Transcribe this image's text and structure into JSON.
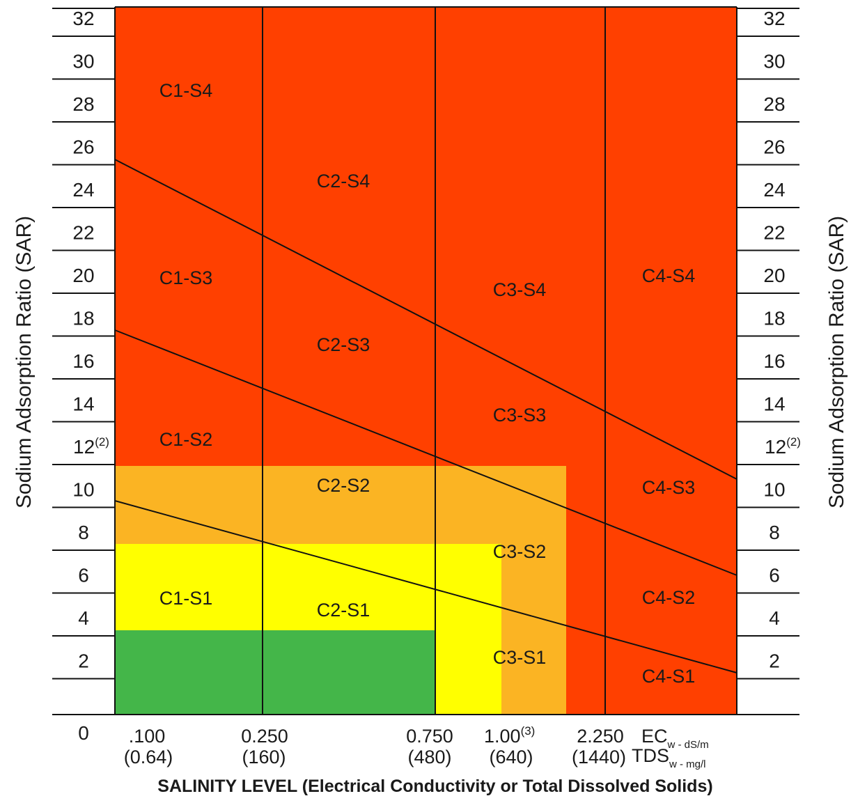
{
  "y_axis": {
    "label_left": "Sodium Adsorption Ratio (SAR)",
    "label_right": "Sodium Adsorption Ratio (SAR)",
    "ticks": [
      {
        "value": 0,
        "text": "0",
        "sup": ""
      },
      {
        "value": 2,
        "text": "2",
        "sup": ""
      },
      {
        "value": 4,
        "text": "4",
        "sup": ""
      },
      {
        "value": 6,
        "text": "6",
        "sup": ""
      },
      {
        "value": 8,
        "text": "8",
        "sup": ""
      },
      {
        "value": 10,
        "text": "10",
        "sup": ""
      },
      {
        "value": 12,
        "text": "12",
        "sup": "(2)"
      },
      {
        "value": 14,
        "text": "14",
        "sup": ""
      },
      {
        "value": 16,
        "text": "16",
        "sup": ""
      },
      {
        "value": 18,
        "text": "18",
        "sup": ""
      },
      {
        "value": 20,
        "text": "20",
        "sup": ""
      },
      {
        "value": 22,
        "text": "22",
        "sup": ""
      },
      {
        "value": 24,
        "text": "24",
        "sup": ""
      },
      {
        "value": 26,
        "text": "26",
        "sup": ""
      },
      {
        "value": 28,
        "text": "28",
        "sup": ""
      },
      {
        "value": 30,
        "text": "30",
        "sup": ""
      },
      {
        "value": 32,
        "text": "32",
        "sup": ""
      }
    ]
  },
  "x_axis": {
    "title": "SALINITY LEVEL (Electrical Conductivity or Total Dissolved Solids)",
    "ec_label": "EC",
    "ec_sub": "w - dS/m",
    "tds_label": "TDS",
    "tds_sub": "w - mg/l",
    "ticks": [
      {
        "ec": ".100",
        "ec_sup": "",
        "tds": "(0.64)"
      },
      {
        "ec": "0.250",
        "ec_sup": "",
        "tds": "(160)"
      },
      {
        "ec": "0.750",
        "ec_sup": "",
        "tds": "(480)"
      },
      {
        "ec": "1.00",
        "ec_sup": "(3)",
        "tds": "(640)"
      },
      {
        "ec": "2.250",
        "ec_sup": "",
        "tds": "(1440)"
      }
    ]
  },
  "zones": {
    "C1-S4": "C1-S4",
    "C1-S3": "C1-S3",
    "C1-S2": "C1-S2",
    "C1-S1": "C1-S1",
    "C2-S4": "C2-S4",
    "C2-S3": "C2-S3",
    "C2-S2": "C2-S2",
    "C2-S1": "C2-S1",
    "C3-S4": "C3-S4",
    "C3-S3": "C3-S3",
    "C3-S2": "C3-S2",
    "C3-S1": "C3-S1",
    "C4-S4": "C4-S4",
    "C4-S3": "C4-S3",
    "C4-S2": "C4-S2",
    "C4-S1": "C4-S1"
  },
  "colors": {
    "severe": "#ff4000",
    "moderate": "#fbb423",
    "slight": "#ffff00",
    "none": "#44b649",
    "lines": "#111111"
  }
}
